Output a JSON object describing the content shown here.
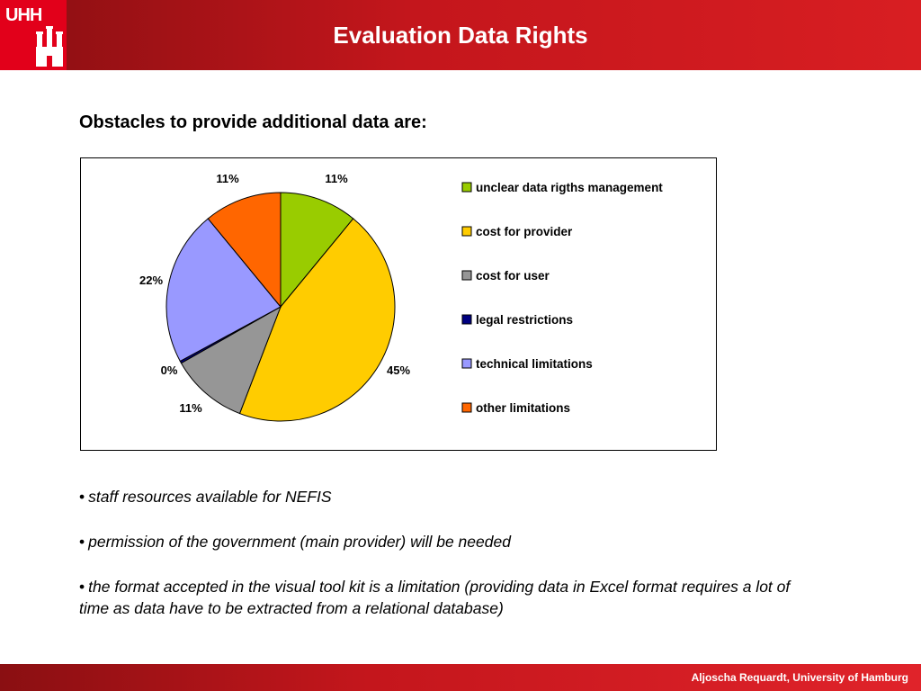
{
  "header": {
    "title": "Evaluation Data Rights",
    "logo_text": "UHH"
  },
  "subtitle": "Obstacles to provide additional data are:",
  "chart_data": {
    "type": "pie",
    "slices": [
      {
        "label": "unclear data rigths management",
        "value": 11,
        "display": "11%",
        "color": "#99cc00"
      },
      {
        "label": "cost for provider",
        "value": 45,
        "display": "45%",
        "color": "#ffcc00"
      },
      {
        "label": "cost for user",
        "value": 11,
        "display": "11%",
        "color": "#969696"
      },
      {
        "label": "legal restrictions",
        "value": 0.3,
        "display": "0%",
        "color": "#000080"
      },
      {
        "label": "technical limitations",
        "value": 22,
        "display": "22%",
        "color": "#9999ff"
      },
      {
        "label": "other limitations",
        "value": 11,
        "display": "11%",
        "color": "#ff6600"
      }
    ],
    "legend_position": "right"
  },
  "bullets": [
    "staff resources available for NEFIS",
    "permission of the government (main provider) will be needed",
    "the format accepted in the visual tool kit is a limitation (providing data in Excel format requires a lot of time as data have to be extracted from a relational database)"
  ],
  "footer": {
    "text": "Aljoscha Requardt, University of Hamburg"
  }
}
